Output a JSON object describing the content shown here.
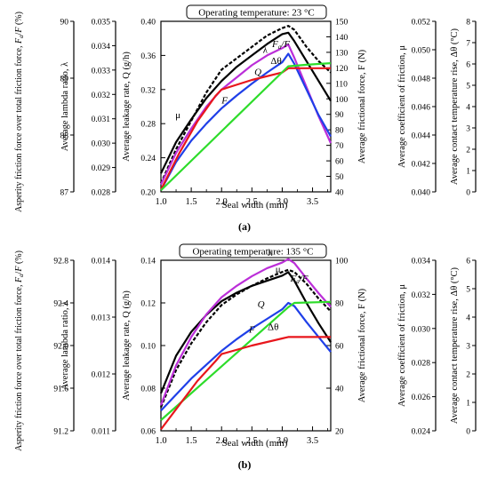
{
  "chart_data": [
    {
      "type": "line",
      "panel_label": "(a)",
      "title": "Operating temperature: 23 °C",
      "xlabel": "Seal width (mm)",
      "xlim": [
        1.0,
        3.8
      ],
      "xticks": [
        1.0,
        1.5,
        2.0,
        2.5,
        3.0,
        3.5
      ],
      "xtick_labels": [
        "1.0",
        "1.5",
        "2.0",
        "2.5",
        "3.0",
        "3.5"
      ],
      "axes": [
        {
          "key": "fa",
          "label": "Asperity friction force over total friction force, F_a/F (%)",
          "lim": [
            87,
            90
          ],
          "ticks": [
            87,
            88,
            89,
            90
          ],
          "tick_labels": [
            "87",
            "88",
            "89",
            "90"
          ]
        },
        {
          "key": "lam",
          "label": "Average lambda ratio, λ",
          "lim": [
            0.028,
            0.035
          ],
          "ticks": [
            0.028,
            0.029,
            0.03,
            0.031,
            0.032,
            0.033,
            0.034,
            0.035
          ],
          "tick_labels": [
            "0.028",
            "0.029",
            "0.030",
            "0.031",
            "0.032",
            "0.033",
            "0.034",
            "0.035"
          ]
        },
        {
          "key": "q",
          "label": "Average leakage rate, Q (g/h)",
          "lim": [
            0.2,
            0.4
          ],
          "ticks": [
            0.2,
            0.24,
            0.28,
            0.32,
            0.36,
            0.4
          ],
          "tick_labels": [
            "0.20",
            "0.24",
            "0.28",
            "0.32",
            "0.36",
            "0.40"
          ]
        },
        {
          "key": "f",
          "label": "Average frictional force, F (N)",
          "lim": [
            40,
            150
          ],
          "ticks": [
            40,
            50,
            60,
            70,
            80,
            90,
            100,
            110,
            120,
            130,
            140,
            150
          ],
          "tick_labels": [
            "40",
            "50",
            "60",
            "70",
            "80",
            "90",
            "100",
            "110",
            "120",
            "130",
            "140",
            "150"
          ]
        },
        {
          "key": "mu",
          "label": "Average coefficient of friction, μ",
          "lim": [
            0.04,
            0.052
          ],
          "ticks": [
            0.04,
            0.042,
            0.044,
            0.046,
            0.048,
            0.05,
            0.052
          ],
          "tick_labels": [
            "0.040",
            "0.042",
            "0.044",
            "0.046",
            "0.048",
            "0.050",
            "0.052"
          ]
        },
        {
          "key": "dt",
          "label": "Average contact temperature rise, Δθ (°C)",
          "lim": [
            0,
            8
          ],
          "ticks": [
            0,
            1,
            2,
            3,
            4,
            5,
            6,
            7,
            8
          ],
          "tick_labels": [
            "0",
            "1",
            "2",
            "3",
            "4",
            "5",
            "6",
            "7",
            "8"
          ]
        }
      ],
      "series": [
        {
          "name": "Fₐ/F",
          "axis": "fa",
          "color": "#000000",
          "dashed": true,
          "x": [
            1.0,
            1.25,
            1.5,
            1.75,
            2.0,
            2.25,
            2.5,
            2.75,
            3.0,
            3.1,
            3.2,
            3.4,
            3.6,
            3.8
          ],
          "y": [
            87.15,
            87.75,
            88.25,
            88.75,
            89.15,
            89.35,
            89.55,
            89.75,
            89.88,
            89.92,
            89.85,
            89.55,
            89.3,
            89.1
          ]
        },
        {
          "name": "μ",
          "axis": "mu",
          "color": "#000000",
          "dashed": false,
          "x": [
            1.0,
            1.25,
            1.5,
            1.75,
            2.0,
            2.25,
            2.5,
            2.75,
            3.0,
            3.1,
            3.2,
            3.4,
            3.6,
            3.8
          ],
          "y": [
            0.0413,
            0.0435,
            0.0451,
            0.0466,
            0.0478,
            0.0488,
            0.0496,
            0.0504,
            0.0511,
            0.0512,
            0.0506,
            0.0492,
            0.0478,
            0.0464
          ]
        },
        {
          "name": "λ",
          "axis": "lam",
          "color": "#bb2ed8",
          "dashed": false,
          "x": [
            1.0,
            1.25,
            1.5,
            1.75,
            2.0,
            2.25,
            2.5,
            2.75,
            3.0,
            3.1,
            3.2,
            3.4,
            3.6,
            3.8
          ],
          "y": [
            0.0283,
            0.0296,
            0.0306,
            0.0315,
            0.0322,
            0.0327,
            0.0332,
            0.0336,
            0.0339,
            0.03405,
            0.0335,
            0.0323,
            0.0311,
            0.03
          ]
        },
        {
          "name": "Q",
          "axis": "q",
          "color": "#1f3fe8",
          "dashed": false,
          "x": [
            1.0,
            1.25,
            1.5,
            1.75,
            2.0,
            2.25,
            2.5,
            2.75,
            3.0,
            3.1,
            3.2,
            3.4,
            3.6,
            3.8
          ],
          "y": [
            0.202,
            0.235,
            0.26,
            0.28,
            0.298,
            0.313,
            0.327,
            0.34,
            0.352,
            0.362,
            0.35,
            0.32,
            0.29,
            0.265
          ]
        },
        {
          "name": "Δθ",
          "axis": "dt",
          "color": "#e8161c",
          "dashed": false,
          "x": [
            1.0,
            1.3,
            1.6,
            1.9,
            2.0,
            2.5,
            3.0,
            3.1,
            3.5,
            3.8
          ],
          "y": [
            0.1,
            1.8,
            3.3,
            4.5,
            4.8,
            5.25,
            5.6,
            5.8,
            5.8,
            5.8
          ]
        },
        {
          "name": "F",
          "axis": "f",
          "color": "#2ddc2a",
          "dashed": false,
          "x": [
            1.0,
            3.1,
            3.4,
            3.8
          ],
          "y": [
            41,
            121,
            122,
            123
          ]
        }
      ]
    },
    {
      "type": "line",
      "panel_label": "(b)",
      "title": "Operating temperature: 135 °C",
      "xlabel": "Seal width (mm)",
      "xlim": [
        1.0,
        3.8
      ],
      "xticks": [
        1.0,
        1.5,
        2.0,
        2.5,
        3.0,
        3.5
      ],
      "xtick_labels": [
        "1.0",
        "1.5",
        "2.0",
        "2.5",
        "3.0",
        "3.5"
      ],
      "axes": [
        {
          "key": "fa",
          "label": "Asperity friction force over total friction force, F_a/F (%)",
          "lim": [
            91.2,
            92.8
          ],
          "ticks": [
            91.2,
            91.6,
            92.0,
            92.4,
            92.8
          ],
          "tick_labels": [
            "91.2",
            "91.6",
            "92.0",
            "92.4",
            "92.8"
          ]
        },
        {
          "key": "lam",
          "label": "Average lambda ratio, λ",
          "lim": [
            0.011,
            0.014
          ],
          "ticks": [
            0.011,
            0.012,
            0.013,
            0.014
          ],
          "tick_labels": [
            "0.011",
            "0.012",
            "0.013",
            "0.014"
          ]
        },
        {
          "key": "q",
          "label": "Average leakage rate, Q (g/h)",
          "lim": [
            0.06,
            0.14
          ],
          "ticks": [
            0.06,
            0.08,
            0.1,
            0.12,
            0.14
          ],
          "tick_labels": [
            "0.06",
            "0.08",
            "0.10",
            "0.12",
            "0.14"
          ]
        },
        {
          "key": "f",
          "label": "Average frictional force, F (N)",
          "lim": [
            20,
            100
          ],
          "ticks": [
            20,
            40,
            60,
            80,
            100
          ],
          "tick_labels": [
            "20",
            "40",
            "60",
            "80",
            "100"
          ]
        },
        {
          "key": "mu",
          "label": "Average coefficient of friction, μ",
          "lim": [
            0.024,
            0.034
          ],
          "ticks": [
            0.024,
            0.026,
            0.028,
            0.03,
            0.032,
            0.034
          ],
          "tick_labels": [
            "0.024",
            "0.026",
            "0.028",
            "0.030",
            "0.032",
            "0.034"
          ]
        },
        {
          "key": "dt",
          "label": "Average contact temperature rise, Δθ (°C)",
          "lim": [
            0,
            6
          ],
          "ticks": [
            0,
            1,
            2,
            3,
            4,
            5,
            6
          ],
          "tick_labels": [
            "0",
            "1",
            "2",
            "3",
            "4",
            "5",
            "6"
          ]
        }
      ],
      "series": [
        {
          "name": "Fₐ/F",
          "axis": "fa",
          "color": "#000000",
          "dashed": true,
          "x": [
            1.0,
            1.25,
            1.5,
            1.75,
            2.0,
            2.25,
            2.5,
            2.75,
            3.0,
            3.1,
            3.2,
            3.4,
            3.6,
            3.8
          ],
          "y": [
            91.42,
            91.77,
            92.02,
            92.22,
            92.38,
            92.48,
            92.56,
            92.63,
            92.69,
            92.71,
            92.69,
            92.58,
            92.44,
            92.32
          ]
        },
        {
          "name": "μ",
          "axis": "mu",
          "color": "#000000",
          "dashed": false,
          "x": [
            1.0,
            1.25,
            1.5,
            1.75,
            2.0,
            2.25,
            2.5,
            2.75,
            3.0,
            3.1,
            3.2,
            3.4,
            3.6,
            3.8
          ],
          "y": [
            0.0262,
            0.0284,
            0.0298,
            0.0308,
            0.0316,
            0.0321,
            0.0325,
            0.0328,
            0.0331,
            0.0333,
            0.0328,
            0.0315,
            0.0303,
            0.0292
          ]
        },
        {
          "name": "λ",
          "axis": "lam",
          "color": "#bb2ed8",
          "dashed": false,
          "x": [
            1.0,
            1.25,
            1.5,
            1.75,
            2.0,
            2.25,
            2.5,
            2.75,
            3.0,
            3.1,
            3.2,
            3.4,
            3.6,
            3.8
          ],
          "y": [
            0.01145,
            0.01215,
            0.01265,
            0.01305,
            0.01335,
            0.01355,
            0.01372,
            0.01386,
            0.01396,
            0.01402,
            0.01395,
            0.01368,
            0.01342,
            0.01318
          ]
        },
        {
          "name": "Q",
          "axis": "q",
          "color": "#1f3fe8",
          "dashed": false,
          "x": [
            1.0,
            1.25,
            1.5,
            1.75,
            2.0,
            2.25,
            2.5,
            2.75,
            3.0,
            3.1,
            3.2,
            3.4,
            3.6,
            3.8
          ],
          "y": [
            0.0695,
            0.077,
            0.0845,
            0.091,
            0.0975,
            0.103,
            0.108,
            0.1125,
            0.117,
            0.12,
            0.1185,
            0.111,
            0.104,
            0.097
          ]
        },
        {
          "name": "F",
          "axis": "f",
          "color": "#2ddc2a",
          "dashed": false,
          "x": [
            1.0,
            3.1,
            3.2,
            3.8
          ],
          "y": [
            25,
            78,
            80,
            80.5
          ]
        },
        {
          "name": "Δθ",
          "axis": "dt",
          "color": "#e8161c",
          "dashed": false,
          "x": [
            1.0,
            1.3,
            1.6,
            1.9,
            2.0,
            2.5,
            3.0,
            3.1,
            3.5,
            3.8
          ],
          "y": [
            0.05,
            0.9,
            1.75,
            2.45,
            2.7,
            3.0,
            3.25,
            3.3,
            3.3,
            3.3
          ]
        }
      ]
    }
  ],
  "panels": [
    {
      "label": "(a)",
      "labels": [
        {
          "name": "fa-over-f-label",
          "text": "Fₐ/F",
          "series": "Fₐ/F",
          "x": 2.98,
          "y": 89.55,
          "axis": "fa",
          "italic": true
        },
        {
          "name": "lambda-label",
          "text": "λ",
          "series": "λ",
          "x": 2.72,
          "y": 0.0337,
          "axis": "lam",
          "italic": false
        },
        {
          "name": "q-label",
          "text": "Q",
          "series": "Q",
          "x": 2.6,
          "y": 0.337,
          "axis": "q",
          "italic": true
        },
        {
          "name": "delta-theta-label",
          "text": "Δθ",
          "series": "Δθ",
          "x": 2.9,
          "y": 6.0,
          "axis": "dt",
          "italic": false
        },
        {
          "name": "f-label",
          "text": "F",
          "series": "F",
          "x": 2.05,
          "y": 97,
          "axis": "f",
          "italic": true
        },
        {
          "name": "mu-label",
          "text": "μ",
          "series": "μ",
          "x": 1.28,
          "y": 0.0452,
          "axis": "mu",
          "italic": false
        }
      ]
    },
    {
      "label": "(b)",
      "labels": [
        {
          "name": "lambda-label",
          "text": "λ",
          "series": "λ",
          "x": 2.8,
          "y": 0.01408,
          "axis": "lam",
          "italic": false
        },
        {
          "name": "mu-label",
          "text": "μ",
          "series": "μ",
          "x": 2.93,
          "y": 0.0333,
          "axis": "mu",
          "italic": false
        },
        {
          "name": "fa-over-f-label",
          "text": "Fₐ/F",
          "series": "Fₐ/F",
          "x": 3.28,
          "y": 92.6,
          "axis": "fa",
          "italic": true
        },
        {
          "name": "q-label",
          "text": "Q",
          "series": "Q",
          "x": 2.65,
          "y": 0.118,
          "axis": "q",
          "italic": true
        },
        {
          "name": "f-label",
          "text": "F",
          "series": "F",
          "x": 2.5,
          "y": 66,
          "axis": "f",
          "italic": true
        },
        {
          "name": "delta-theta-label",
          "text": "Δθ",
          "series": "Δθ",
          "x": 2.85,
          "y": 3.55,
          "axis": "dt",
          "italic": false
        }
      ]
    }
  ]
}
